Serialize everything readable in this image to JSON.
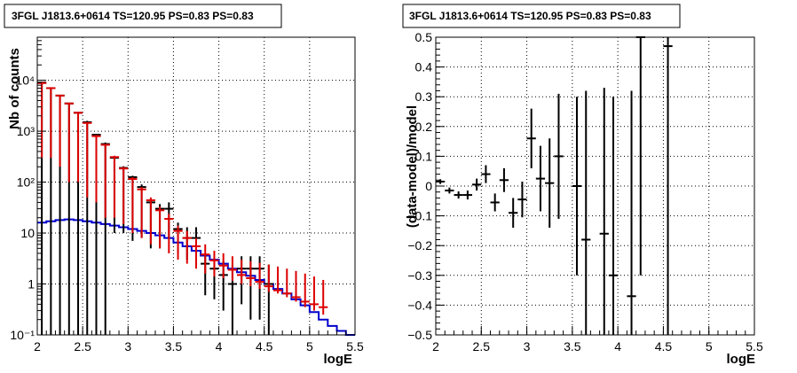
{
  "chart_data": [
    {
      "type": "line",
      "title": "3FGL J1813.6+0614 TS=120.95 PS=0.83 PS=0.83",
      "xlabel": "logE",
      "ylabel": "Nb of counts",
      "xlim": [
        2,
        5.5
      ],
      "ylim": [
        0.1,
        70000
      ],
      "yscale": "log",
      "grid": true,
      "x_ticks": [
        "2",
        "2.5",
        "3",
        "3.5",
        "4",
        "4.5",
        "5",
        "5.5"
      ],
      "y_ticks": [
        "10⁻¹",
        "1",
        "10",
        "10²",
        "10³",
        "10⁴"
      ],
      "colors": {
        "data": "#000000",
        "model": "#dd0000",
        "source": "#0000cc"
      },
      "series": [
        {
          "role": "data",
          "x": [
            2.05,
            2.15,
            2.25,
            2.35,
            2.45,
            2.55,
            2.65,
            2.75,
            2.85,
            2.95,
            3.05,
            3.15,
            3.25,
            3.35,
            3.45,
            3.55,
            3.65,
            3.75,
            3.85,
            3.95,
            4.05,
            4.15,
            4.25,
            4.35,
            4.45,
            4.55
          ],
          "y": [
            9000,
            7000,
            5000,
            3500,
            2300,
            1500,
            850,
            560,
            300,
            190,
            125,
            80,
            40,
            30,
            30,
            12,
            8,
            8,
            2.5,
            2,
            1.5,
            1,
            2,
            2,
            2,
            1
          ],
          "yerr_low": [
            9000,
            7000,
            5000,
            3500,
            2300,
            1500,
            850,
            560,
            290,
            180,
            118,
            72,
            35,
            25,
            22,
            8,
            5,
            4,
            1.9,
            1.5,
            1.2,
            0.95,
            1.6,
            1.8,
            1.8,
            0.95
          ],
          "yerr_high": [
            9100,
            7100,
            5100,
            3600,
            2400,
            1600,
            880,
            600,
            320,
            205,
            133,
            90,
            47,
            37,
            40,
            16,
            13,
            13,
            3.5,
            3,
            2.8,
            2.4,
            3.5,
            3.5,
            3.5,
            2.4
          ]
        },
        {
          "role": "model",
          "x": [
            2.05,
            2.15,
            2.25,
            2.35,
            2.45,
            2.55,
            2.65,
            2.75,
            2.85,
            2.95,
            3.05,
            3.15,
            3.25,
            3.35,
            3.45,
            3.55,
            3.65,
            3.75,
            3.85,
            3.95,
            4.05,
            4.15,
            4.25,
            4.35,
            4.45,
            4.55,
            4.65,
            4.75,
            4.85,
            4.95,
            5.05,
            5.15
          ],
          "y": [
            8800,
            7000,
            5000,
            3500,
            2300,
            1450,
            800,
            540,
            310,
            185,
            115,
            72,
            44,
            28,
            19,
            11,
            8,
            5.5,
            3.8,
            2.9,
            2.3,
            1.9,
            1.5,
            1.3,
            1.1,
            0.9,
            0.75,
            0.65,
            0.55,
            0.45,
            0.4,
            0.35
          ],
          "yerr_low": [
            8500,
            6700,
            4800,
            3400,
            2200,
            1400,
            760,
            520,
            290,
            170,
            105,
            64,
            38,
            23,
            15,
            8,
            5.5,
            3.5,
            2.2,
            1.5,
            1,
            0.75,
            0.5,
            0.4,
            0.3,
            0.2,
            0.1,
            0.1,
            0.1,
            0.1,
            0.1,
            0.1
          ],
          "yerr_high": [
            9100,
            7300,
            5200,
            3600,
            2400,
            1500,
            840,
            560,
            330,
            200,
            125,
            80,
            50,
            33,
            24,
            14,
            11,
            8,
            6,
            4.5,
            4,
            3.5,
            3,
            2.8,
            2.6,
            2.4,
            2.2,
            2,
            1.8,
            1.6,
            1.4,
            1.2
          ]
        },
        {
          "role": "source",
          "x": [
            2,
            2.1,
            2.2,
            2.3,
            2.4,
            2.5,
            2.6,
            2.7,
            2.8,
            2.9,
            3,
            3.1,
            3.2,
            3.3,
            3.4,
            3.5,
            3.6,
            3.7,
            3.8,
            3.9,
            4,
            4.1,
            4.2,
            4.3,
            4.4,
            4.5,
            4.6,
            4.7,
            4.8,
            4.9,
            5,
            5.1,
            5.2,
            5.3,
            5.4,
            5.5
          ],
          "y": [
            16,
            17,
            18,
            18.5,
            18,
            17,
            16,
            15,
            14,
            13,
            12,
            11,
            10,
            9,
            8,
            6.5,
            5.5,
            4.5,
            3.6,
            3,
            2.5,
            2,
            1.7,
            1.45,
            1.2,
            1,
            0.8,
            0.65,
            0.5,
            0.38,
            0.28,
            0.2,
            0.15,
            0.12,
            0.1,
            0.1
          ]
        }
      ]
    },
    {
      "type": "scatter",
      "title": "3FGL J1813.6+0614 TS=120.95 PS=0.83 PS=0.83",
      "xlabel": "logE",
      "ylabel": "(data-model)/model",
      "xlim": [
        2,
        5.5
      ],
      "ylim": [
        -0.5,
        0.5
      ],
      "grid": true,
      "x_ticks": [
        "2",
        "2.5",
        "3",
        "3.5",
        "4",
        "4.5",
        "5",
        "5.5"
      ],
      "y_ticks": [
        "−0.5",
        "−0.4",
        "−0.3",
        "−0.2",
        "−0.1",
        "0",
        "0.1",
        "0.2",
        "0.3",
        "0.4",
        "0.5"
      ],
      "series": [
        {
          "x": [
            2.05,
            2.15,
            2.25,
            2.35,
            2.45,
            2.55,
            2.65,
            2.75,
            2.85,
            2.95,
            3.05,
            3.15,
            3.25,
            3.35,
            3.55,
            3.65,
            3.85,
            3.95,
            4.15,
            4.25,
            4.55
          ],
          "y": [
            0.015,
            -0.015,
            -0.03,
            -0.03,
            0.005,
            0.04,
            -0.055,
            0.02,
            -0.09,
            -0.045,
            0.16,
            0.025,
            0.01,
            0.1,
            0,
            -0.18,
            -0.16,
            -0.3,
            -0.37,
            0.5,
            0.47
          ],
          "yerr": [
            0.008,
            0.01,
            0.012,
            0.015,
            0.02,
            0.03,
            0.03,
            0.04,
            0.05,
            0.06,
            0.1,
            0.11,
            0.15,
            0.21,
            0.3,
            0.5,
            0.49,
            0.6,
            0.69,
            0.8,
            0.97
          ]
        }
      ]
    }
  ]
}
